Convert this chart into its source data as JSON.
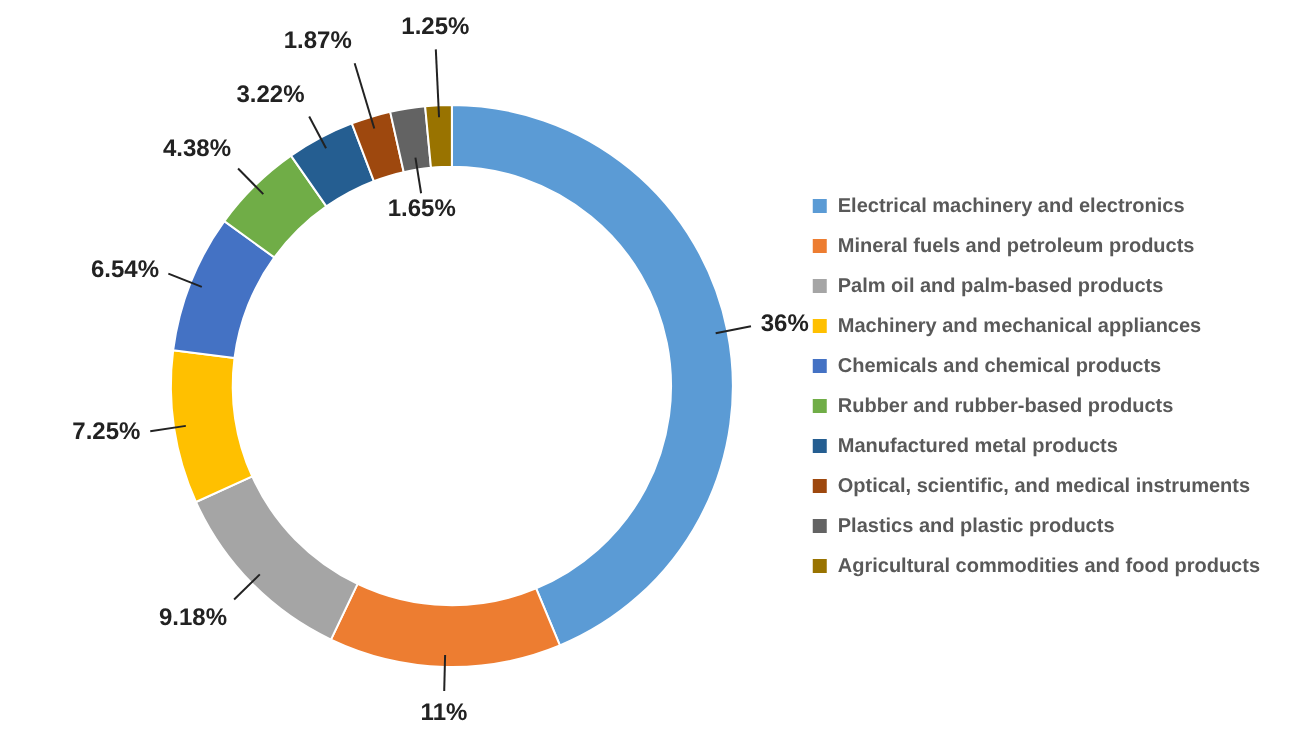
{
  "chart_data": {
    "type": "donut",
    "categories": [
      "Electrical machinery and electronics",
      "Mineral fuels and petroleum products",
      "Palm oil and palm-based products",
      "Machinery and mechanical appliances",
      "Chemicals and chemical products",
      "Rubber and rubber-based products",
      "Manufactured metal products",
      "Optical, scientific, and medical instruments",
      "Plastics and plastic products",
      "Agricultural commodities and food products"
    ],
    "values": [
      36,
      11,
      9.18,
      7.25,
      6.54,
      4.38,
      3.22,
      1.87,
      1.65,
      1.25
    ],
    "value_labels": [
      "36%",
      "11%",
      "9.18%",
      "7.25%",
      "6.54%",
      "4.38%",
      "3.22%",
      "1.87%",
      "1.65%",
      "1.25%"
    ],
    "colors": [
      "#5b9bd5",
      "#ed7d31",
      "#a5a5a5",
      "#ffc000",
      "#4472c4",
      "#70ad47",
      "#255e91",
      "#9e480e",
      "#636363",
      "#997300"
    ],
    "legend": "right"
  }
}
